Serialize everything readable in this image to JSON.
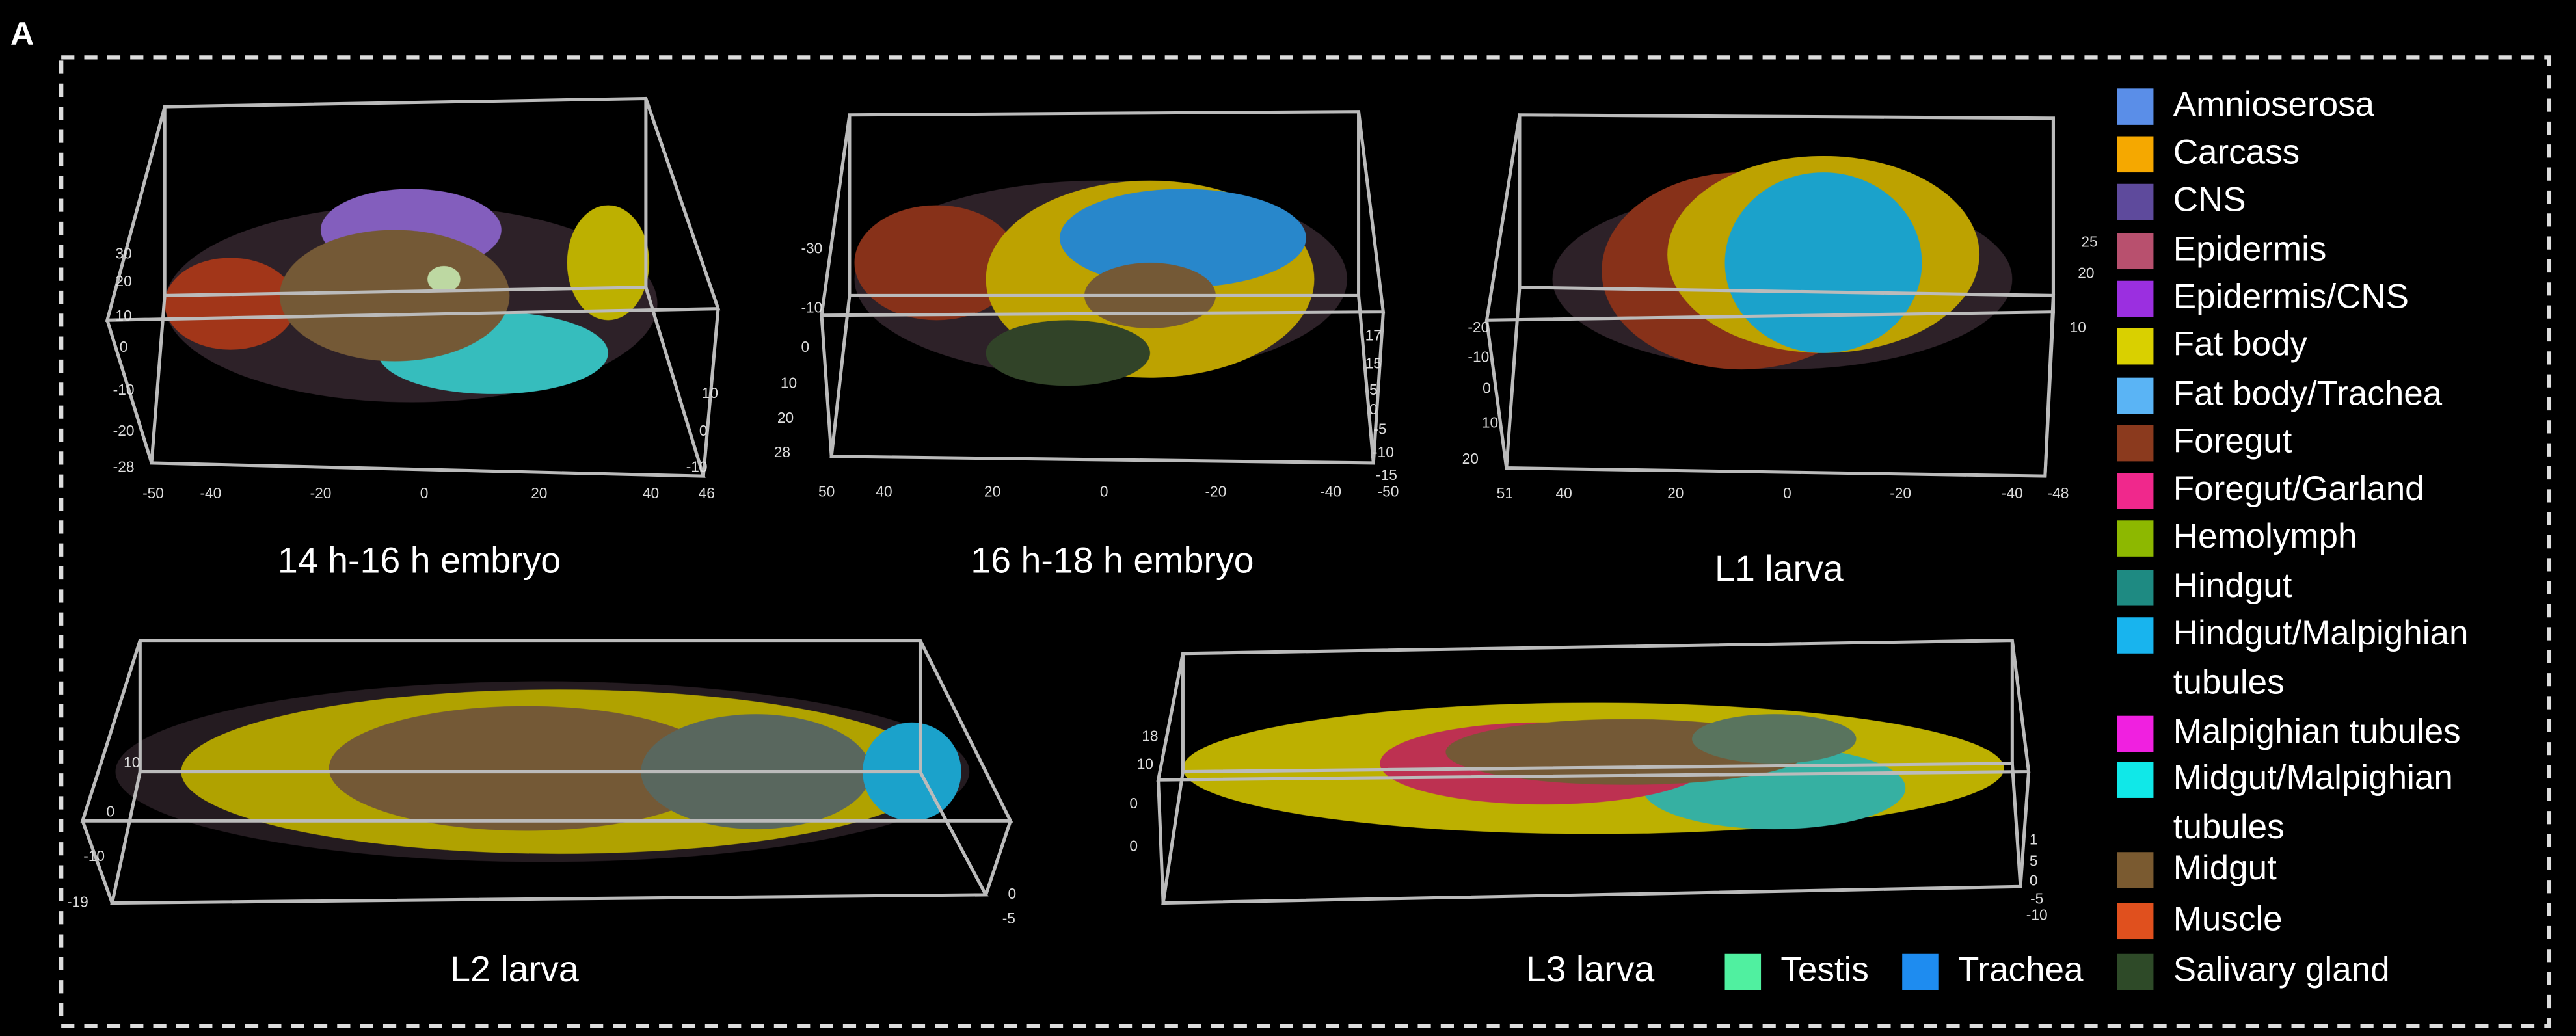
{
  "panel_label": "A",
  "panels": [
    {
      "caption": "14 h-16 h embryo",
      "ticks": [
        "30",
        "20",
        "10",
        "0",
        "-10",
        "-20",
        "-28",
        "-50",
        "-40",
        "-20",
        "0",
        "20",
        "40",
        "46",
        "10",
        "0",
        "-10"
      ]
    },
    {
      "caption": "16 h-18 h embryo",
      "ticks": [
        "-30",
        "-10",
        "0",
        "10",
        "20",
        "28",
        "50",
        "40",
        "20",
        "0",
        "-20",
        "-40",
        "-50",
        "17",
        "15",
        "5",
        "0",
        "-5",
        "-10",
        "-15"
      ]
    },
    {
      "caption": "L1 larva",
      "ticks": [
        "-20",
        "-10",
        "0",
        "10",
        "20",
        "51",
        "40",
        "20",
        "0",
        "-20",
        "-40",
        "-48",
        "25",
        "20",
        "10"
      ]
    },
    {
      "caption": "L2 larva",
      "ticks": [
        "10",
        "0",
        "-10",
        "-19",
        "0",
        "-5"
      ]
    },
    {
      "caption": "L3 larva",
      "ticks": [
        "18",
        "10",
        "0",
        "0",
        "1",
        "5",
        "0",
        "-5",
        "-10"
      ]
    }
  ],
  "legend": [
    {
      "lines": [
        "Amnioserosa"
      ],
      "color": "#5a8ee8"
    },
    {
      "lines": [
        "Carcass"
      ],
      "color": "#f5a800"
    },
    {
      "lines": [
        "CNS"
      ],
      "color": "#5e4a9c"
    },
    {
      "lines": [
        "Epidermis"
      ],
      "color": "#b8506e"
    },
    {
      "lines": [
        "Epidermis/CNS"
      ],
      "color": "#9b2fe0"
    },
    {
      "lines": [
        "Fat body"
      ],
      "color": "#d9d000"
    },
    {
      "lines": [
        "Fat body/Trachea"
      ],
      "color": "#5ab4f5"
    },
    {
      "lines": [
        "Foregut"
      ],
      "color": "#8b3a1e"
    },
    {
      "lines": [
        "Foregut/Garland"
      ],
      "color": "#f0288c"
    },
    {
      "lines": [
        "Hemolymph"
      ],
      "color": "#8db800"
    },
    {
      "lines": [
        "Hindgut"
      ],
      "color": "#1e8a82"
    },
    {
      "lines": [
        "Hindgut/Malpighian",
        "tubules"
      ],
      "color": "#18b4ee"
    },
    {
      "lines": [
        "Malpighian tubules"
      ],
      "color": "#f020e0"
    },
    {
      "lines": [
        "Midgut/Malpighian",
        "tubules"
      ],
      "color": "#10e8e8"
    },
    {
      "lines": [
        "Midgut"
      ],
      "color": "#7a5a30"
    },
    {
      "lines": [
        "Muscle"
      ],
      "color": "#e0501e"
    },
    {
      "lines": [
        "Salivary gland"
      ],
      "color": "#2e4a28"
    },
    {
      "lines": [
        "Testis"
      ],
      "color": "#50f0a0"
    },
    {
      "lines": [
        "Trachea"
      ],
      "color": "#1e8cf0"
    }
  ]
}
